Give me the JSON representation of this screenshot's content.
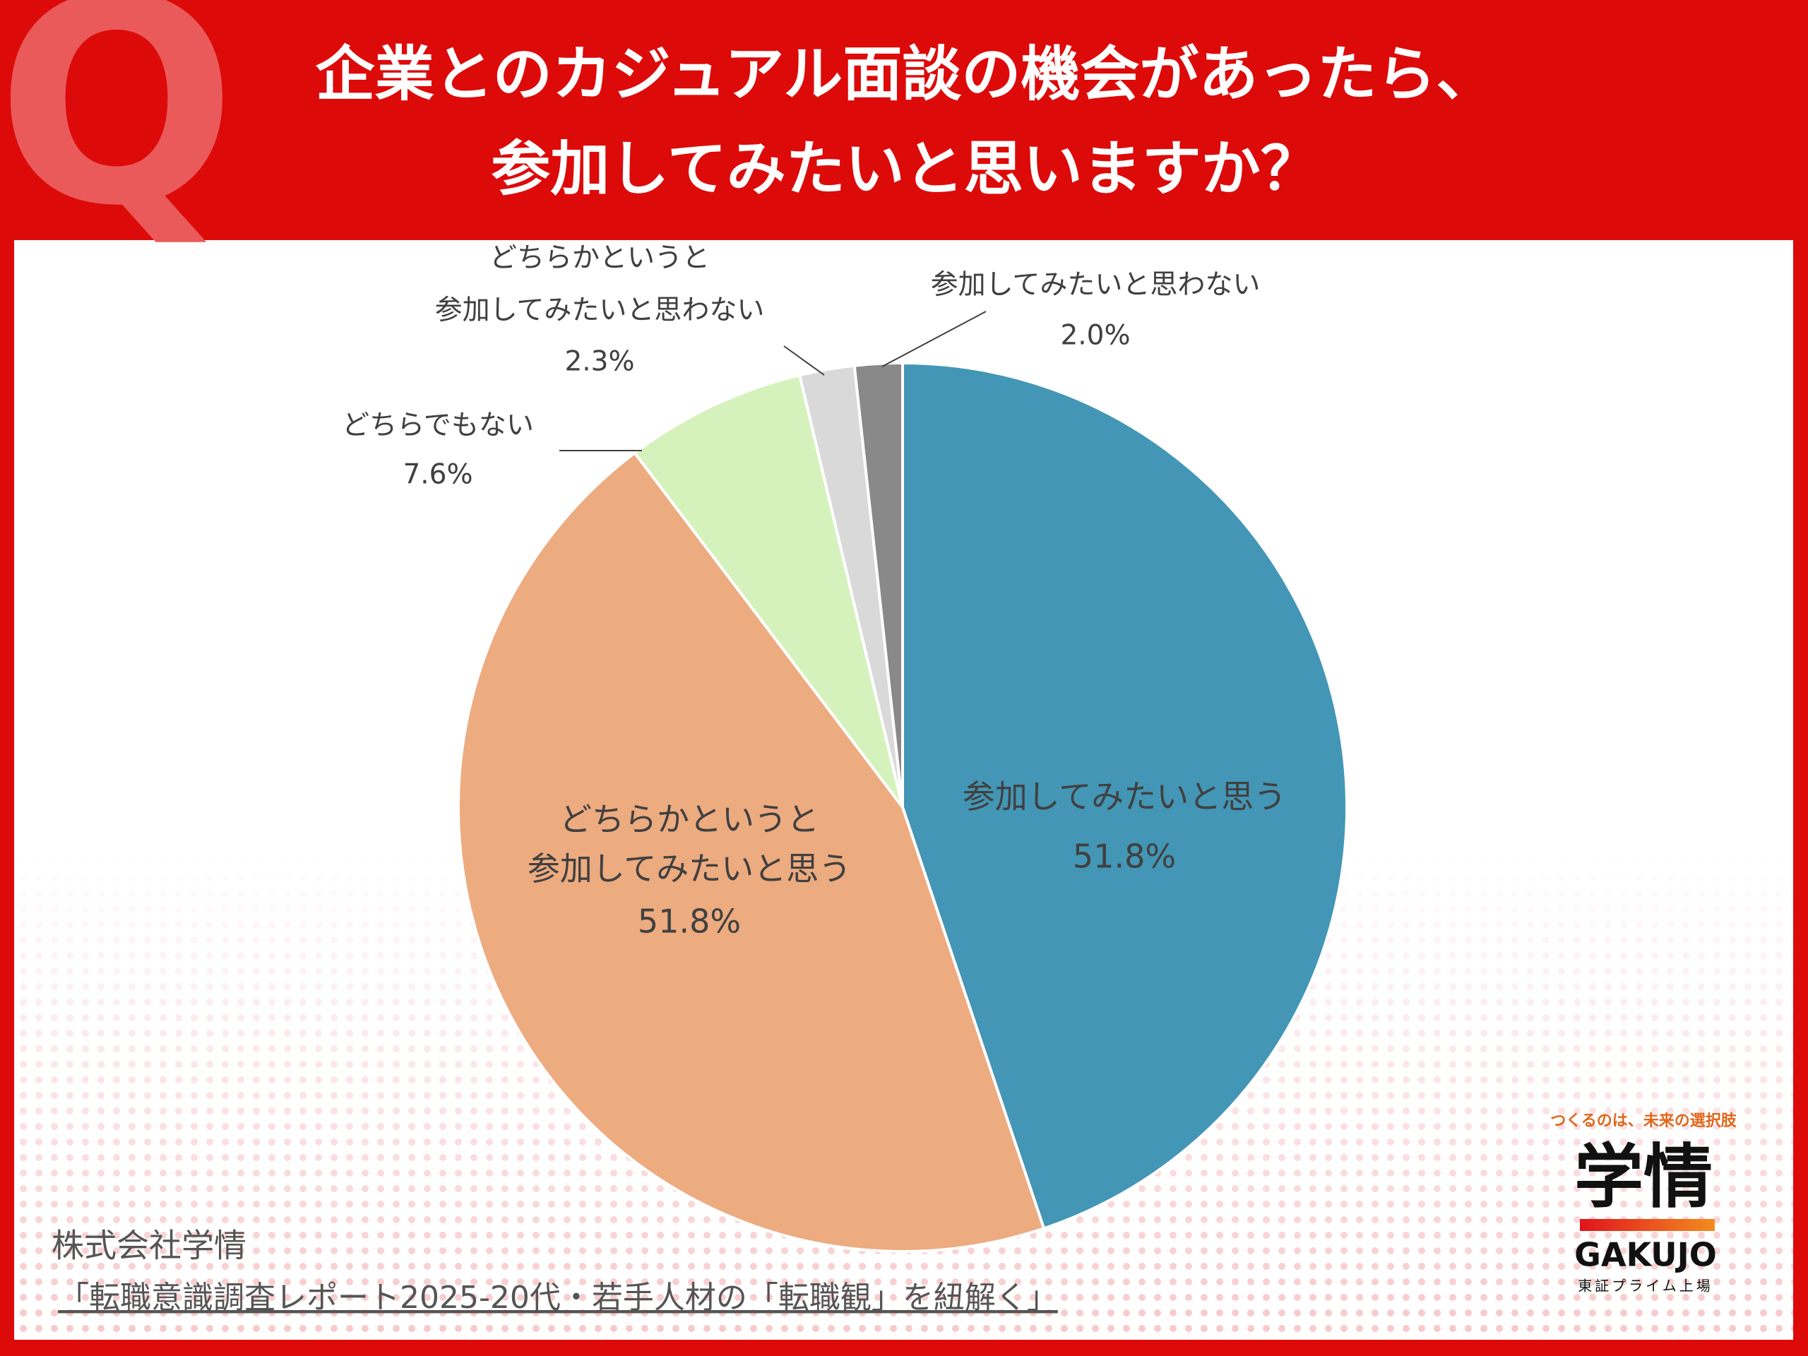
{
  "header": {
    "mark": "Q",
    "title_lines": [
      "企業とのカジュアル面談の機会があったら、",
      "参加してみたいと思いますか？"
    ]
  },
  "chart_data": {
    "type": "pie",
    "categories": [
      "参加してみたいと思う",
      "どちらかというと\n参加してみたいと思う",
      "どちらでもない",
      "どちらかというと\n参加してみたいと思わない",
      "参加してみたいと思わない"
    ],
    "values": [
      51.8,
      51.8,
      7.6,
      2.3,
      2.0
    ],
    "value_labels": [
      "51.8%",
      "51.8%",
      "7.6%",
      "2.3%",
      "2.0%"
    ],
    "colors": [
      "#4396b5",
      "#edab80",
      "#d5f2bc",
      "#d9d9d9",
      "#898989"
    ]
  },
  "source": {
    "company": "株式会社学情",
    "report": "「転職意識調査レポート2025-20代・若手人材の「転職観」を紐解く」"
  },
  "logo": {
    "tagline": "つくるのは、未来の選択肢",
    "name": "学情",
    "roman": "GAKUJO",
    "listing": "東証プライム上場"
  }
}
